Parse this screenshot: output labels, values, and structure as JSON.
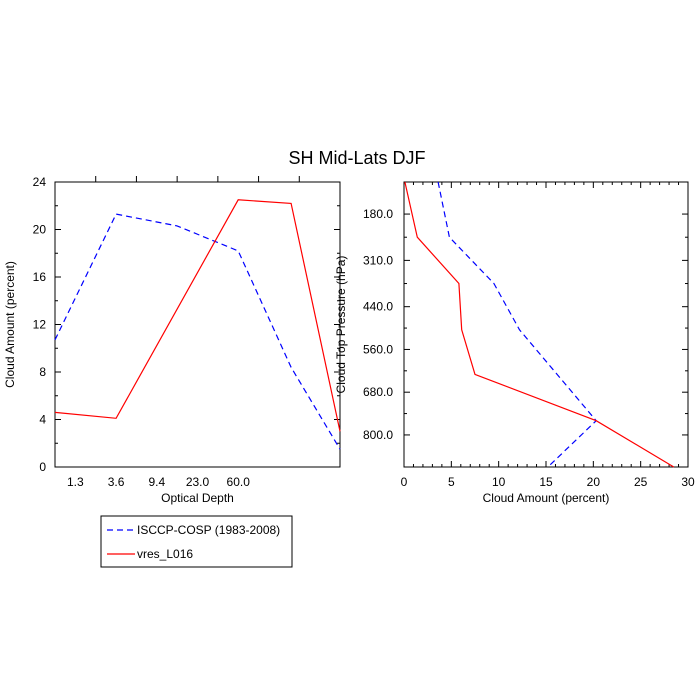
{
  "title": "SH Mid-Lats DJF",
  "colors": {
    "obs": "#0000ff",
    "model": "#ff0000",
    "axis": "#000000"
  },
  "legend": {
    "placement": "below-left",
    "entries": [
      {
        "label": "ISCCP-COSP (1983-2008)",
        "color": "#0000ff",
        "dash": "dashed"
      },
      {
        "label": "vres_L016",
        "color": "#ff0000",
        "dash": "solid"
      }
    ]
  },
  "chart_data": [
    {
      "type": "line",
      "xlabel": "Optical Depth",
      "ylabel": "Cloud Amount (percent)",
      "x_tick_labels": [
        "1.3",
        "3.6",
        "9.4",
        "23.0",
        "60.0"
      ],
      "y_tick_labels": [
        "0",
        "4",
        "8",
        "12",
        "16",
        "20",
        "24"
      ],
      "xlim": [
        0,
        7
      ],
      "ylim": [
        0,
        24
      ],
      "grid": false,
      "series": [
        {
          "name": "ISCCP-COSP (1983-2008)",
          "x": [
            0,
            1.5,
            3,
            4.5,
            5.8,
            7
          ],
          "y": [
            10.7,
            21.3,
            20.3,
            18.2,
            8.4,
            1.5
          ]
        },
        {
          "name": "vres_L016",
          "x": [
            0,
            1.5,
            4.5,
            5.8,
            7
          ],
          "y": [
            4.6,
            4.1,
            22.5,
            22.2,
            3.0
          ]
        }
      ]
    },
    {
      "type": "line",
      "xlabel": "Cloud Amount (percent)",
      "ylabel": "Cloud Top Pressure (hPa)",
      "x_tick_labels": [
        "0",
        "5",
        "10",
        "15",
        "20",
        "25",
        "30"
      ],
      "y_tick_labels": [
        "180.0",
        "310.0",
        "440.0",
        "560.0",
        "680.0",
        "800.0"
      ],
      "xlim": [
        0,
        30
      ],
      "ylim": [
        90,
        890
      ],
      "y_reversed": true,
      "grid": false,
      "series": [
        {
          "name": "ISCCP-COSP (1983-2008)",
          "x": [
            3.6,
            4.8,
            9.5,
            12.2,
            20.3,
            15.2
          ],
          "y": [
            90,
            245,
            375,
            505,
            760,
            890
          ]
        },
        {
          "name": "vres_L016",
          "x": [
            0.1,
            1.4,
            5.8,
            6.1,
            7.5,
            20.3,
            28.5
          ],
          "y": [
            90,
            245,
            375,
            505,
            630,
            760,
            890
          ]
        }
      ]
    }
  ]
}
